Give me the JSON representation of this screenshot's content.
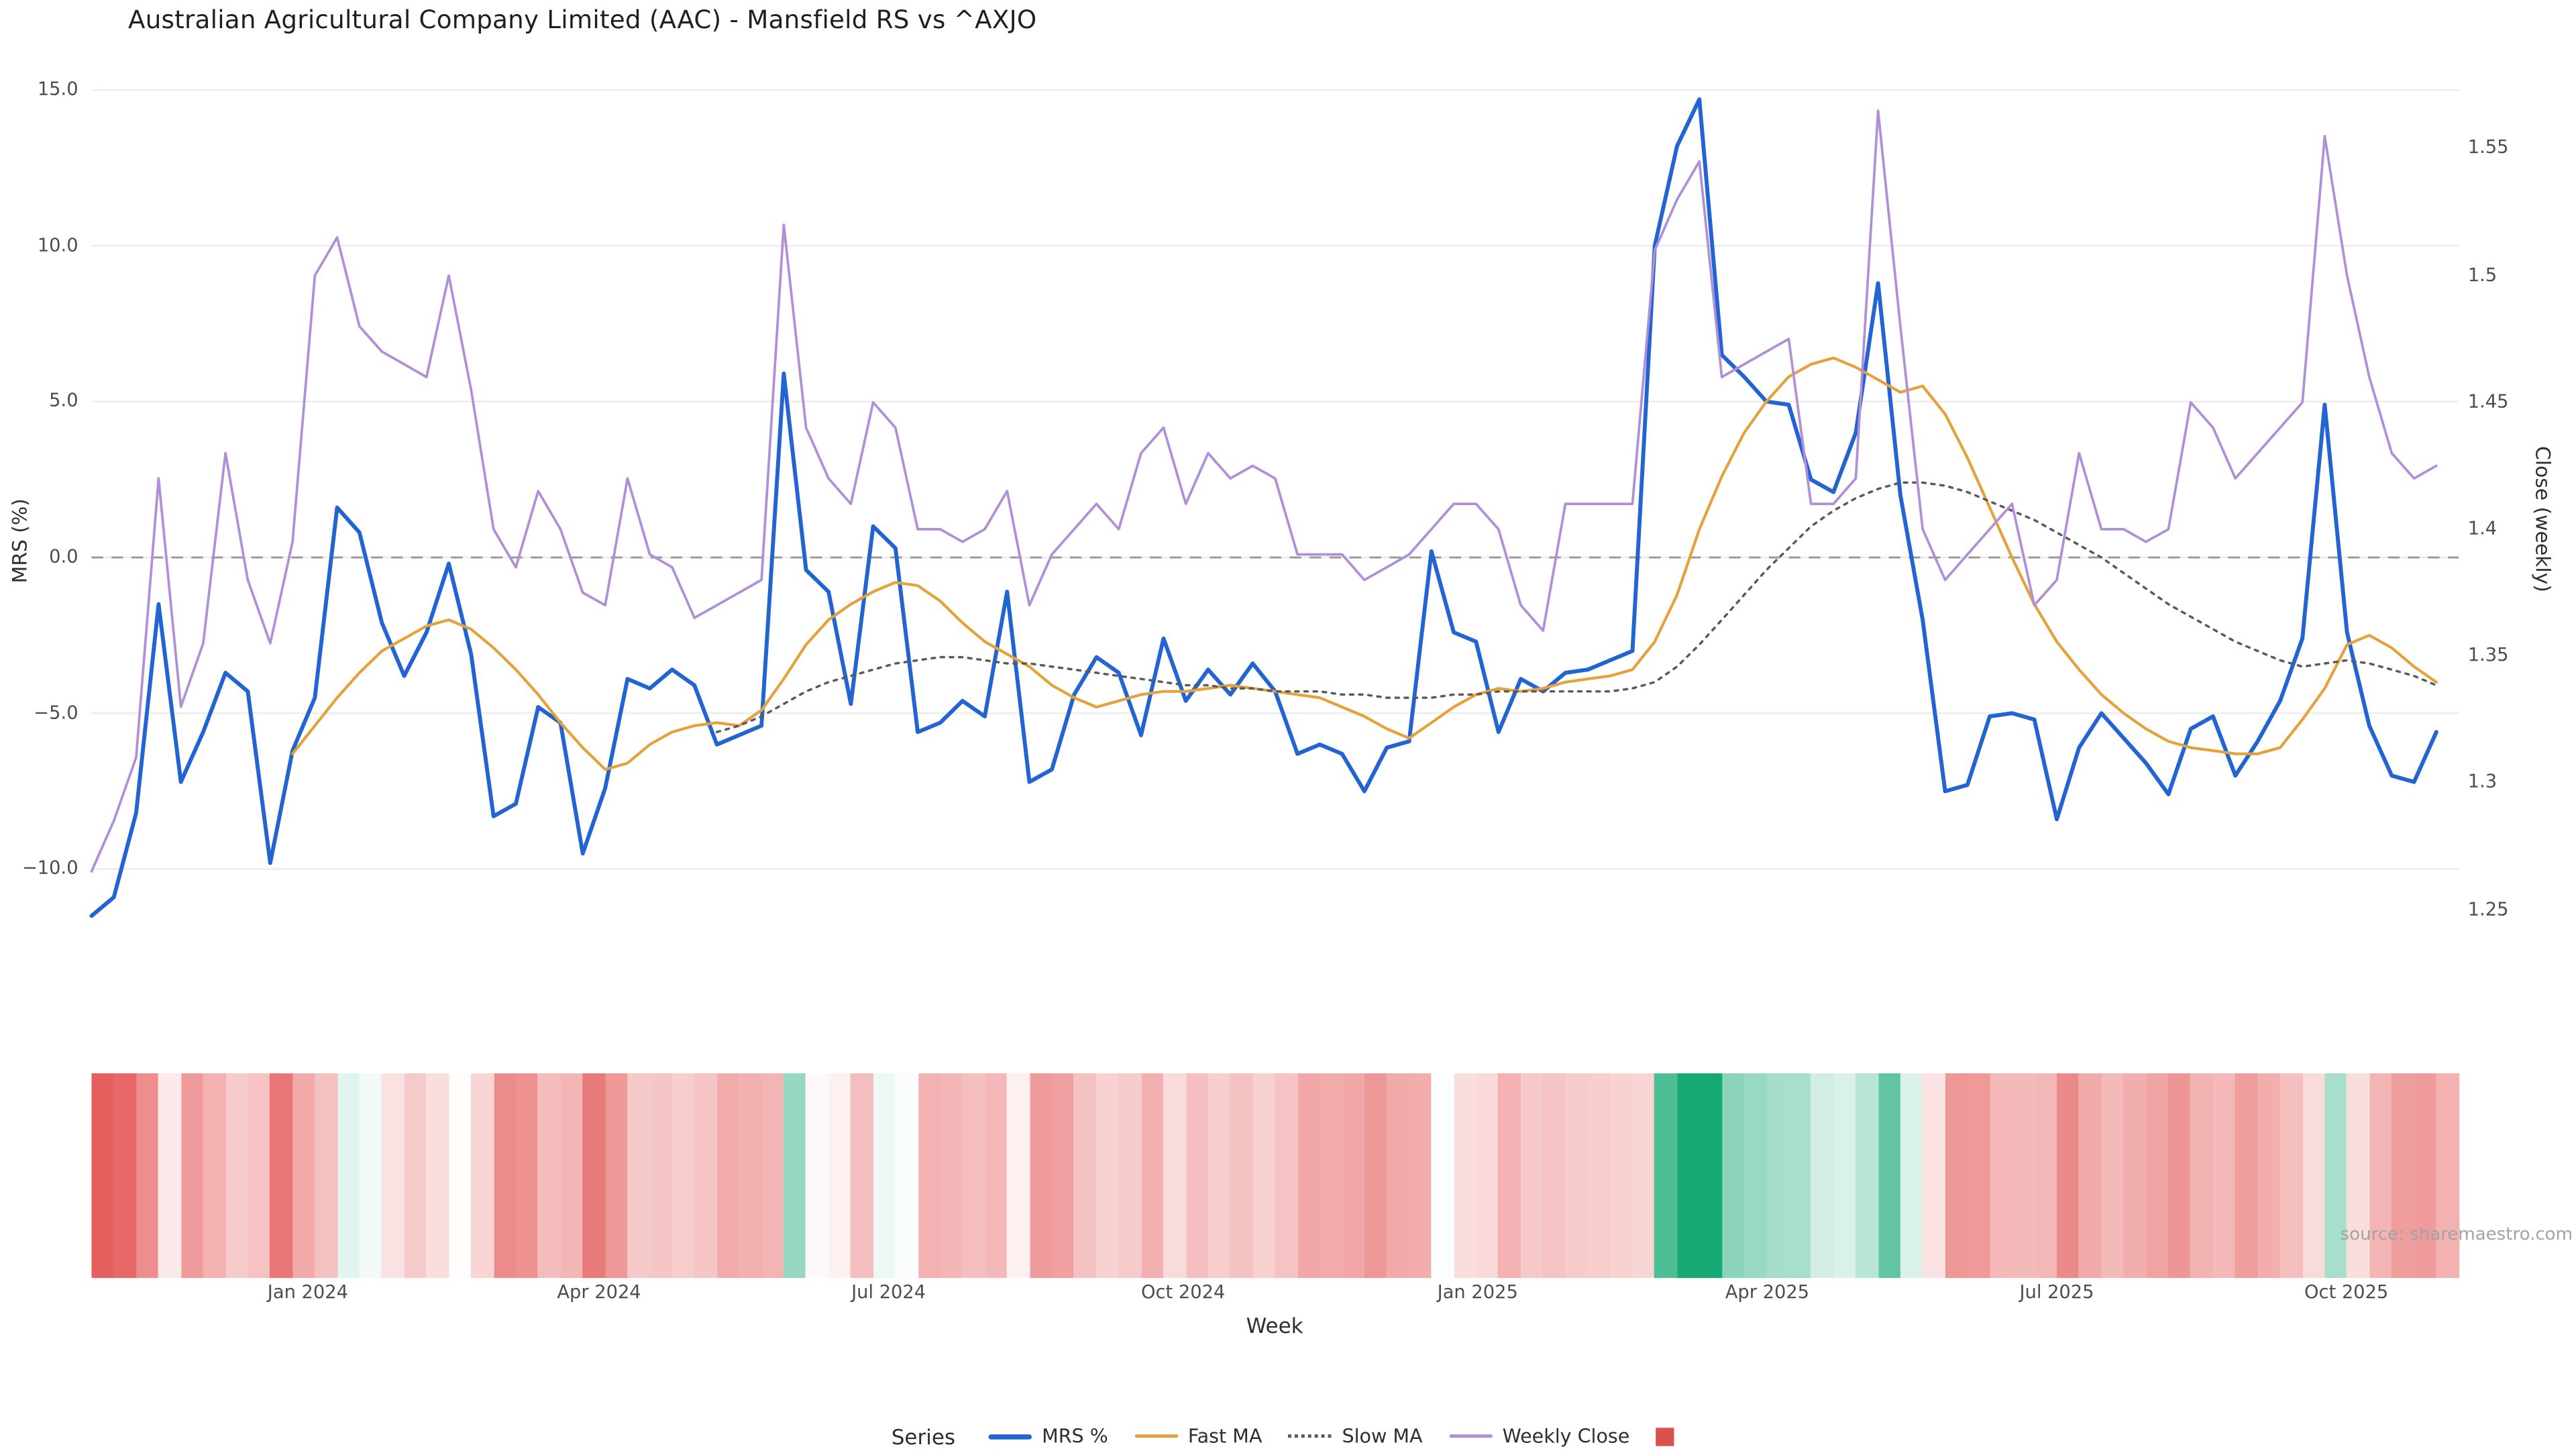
{
  "title": "Australian Agricultural Company Limited (AAC) - Mansfield RS vs ^AXJO",
  "source": "source: sharemaestro.com",
  "axes": {
    "x_label": "Week",
    "left_label": "MRS (%)",
    "right_label": "Close (weekly)"
  },
  "colors": {
    "background": "#ffffff",
    "grid": "#ececec",
    "zero_line": "#9a9a9a",
    "tick_text": "#4d4d4d",
    "title_text": "#1f1f1f"
  },
  "legend": {
    "title": "Series",
    "items": [
      {
        "label": "MRS %",
        "color": "#2264d1",
        "style": "line",
        "thickness": 3
      },
      {
        "label": "Fast MA",
        "color": "#e5a13c",
        "style": "line",
        "thickness": 2
      },
      {
        "label": "Slow MA",
        "color": "#5a5a5a",
        "style": "dotted",
        "thickness": 2
      },
      {
        "label": "Weekly Close",
        "color": "#b18fd8",
        "style": "line",
        "thickness": 2
      },
      {
        "label": "",
        "color": "#d9524e",
        "style": "square",
        "thickness": 11
      }
    ]
  },
  "chart_data": {
    "type": "line",
    "title": "Australian Agricultural Company Limited (AAC) - Mansfield RS vs ^AXJO",
    "xlabel": "Week",
    "x_unit": "weekly observations, late Oct 2023 through early Nov 2025",
    "n_weeks": 106,
    "grid": "horizontal-only",
    "legend_position": "bottom",
    "x_ticks": [
      {
        "label": "Jan 2024",
        "week": 9.7
      },
      {
        "label": "Apr 2024",
        "week": 22.7
      },
      {
        "label": "Jul 2024",
        "week": 35.7
      },
      {
        "label": "Oct 2024",
        "week": 48.9
      },
      {
        "label": "Jan 2025",
        "week": 62.1
      },
      {
        "label": "Apr 2025",
        "week": 75.0
      },
      {
        "label": "Jul 2025",
        "week": 88.0
      },
      {
        "label": "Oct 2025",
        "week": 101.0
      }
    ],
    "left_axis": {
      "label": "MRS (%)",
      "range": [
        -12.5,
        15.8
      ],
      "tick_values": [
        15,
        10,
        5,
        0,
        -5,
        -10
      ],
      "tick_labels": [
        "15.0",
        "10.0",
        "5.0",
        "0.0",
        "−5.0",
        "−10.0"
      ]
    },
    "right_axis": {
      "label": "Close (weekly)",
      "range": [
        1.24,
        1.58
      ],
      "tick_values": [
        1.55,
        1.5,
        1.45,
        1.4,
        1.35,
        1.3,
        1.25
      ],
      "tick_labels": [
        "1.55",
        "1.5",
        "1.45",
        "1.4",
        "1.35",
        "1.3",
        "1.25"
      ]
    },
    "zero_line": 0,
    "series": [
      {
        "name": "MRS %",
        "axis": "left",
        "color": "#2264d1",
        "width": 2.4,
        "dash": null,
        "values": [
          -11.5,
          -10.9,
          -8.2,
          -1.5,
          -7.2,
          -5.6,
          -3.7,
          -4.3,
          -9.8,
          -6.2,
          -4.5,
          1.6,
          0.8,
          -2.1,
          -3.8,
          -2.4,
          -0.2,
          -3.1,
          -8.3,
          -7.9,
          -4.8,
          -5.3,
          -9.5,
          -7.4,
          -3.9,
          -4.2,
          -3.6,
          -4.1,
          -6.0,
          -5.7,
          -5.4,
          5.9,
          -0.4,
          -1.1,
          -4.7,
          1.0,
          0.3,
          -5.6,
          -5.3,
          -4.6,
          -5.1,
          -1.1,
          -7.2,
          -6.8,
          -4.4,
          -3.2,
          -3.7,
          -5.7,
          -2.6,
          -4.6,
          -3.6,
          -4.4,
          -3.4,
          -4.3,
          -6.3,
          -6.0,
          -6.3,
          -7.5,
          -6.1,
          -5.9,
          0.2,
          -2.4,
          -2.7,
          -5.6,
          -3.9,
          -4.3,
          -3.7,
          -3.6,
          -3.3,
          -3.0,
          10.0,
          13.2,
          14.7,
          6.5,
          5.8,
          5.0,
          4.9,
          2.5,
          2.1,
          4.0,
          8.8,
          2.0,
          -2.0,
          -7.5,
          -7.3,
          -5.1,
          -5.0,
          -5.2,
          -8.4,
          -6.1,
          -5.0,
          -5.8,
          -6.6,
          -7.6,
          -5.5,
          -5.1,
          -7.0,
          -5.9,
          -4.6,
          -2.6,
          4.9,
          -2.4,
          -5.4,
          -7.0,
          -7.2,
          -5.6
        ]
      },
      {
        "name": "Fast MA",
        "axis": "left",
        "color": "#e5a13c",
        "width": 1.7,
        "dash": null,
        "values": [
          null,
          null,
          null,
          null,
          null,
          null,
          null,
          null,
          null,
          -6.3,
          -5.4,
          -4.5,
          -3.7,
          -3.0,
          -2.6,
          -2.2,
          -2.0,
          -2.3,
          -2.9,
          -3.6,
          -4.4,
          -5.3,
          -6.1,
          -6.8,
          -6.6,
          -6.0,
          -5.6,
          -5.4,
          -5.3,
          -5.4,
          -4.9,
          -3.9,
          -2.8,
          -2.0,
          -1.5,
          -1.1,
          -0.8,
          -0.9,
          -1.4,
          -2.1,
          -2.7,
          -3.1,
          -3.5,
          -4.1,
          -4.5,
          -4.8,
          -4.6,
          -4.4,
          -4.3,
          -4.3,
          -4.2,
          -4.1,
          -4.2,
          -4.3,
          -4.4,
          -4.5,
          -4.8,
          -5.1,
          -5.5,
          -5.8,
          -5.3,
          -4.8,
          -4.4,
          -4.2,
          -4.3,
          -4.2,
          -4.0,
          -3.9,
          -3.8,
          -3.6,
          -2.7,
          -1.2,
          0.9,
          2.6,
          4.0,
          5.0,
          5.8,
          6.2,
          6.4,
          6.1,
          5.7,
          5.3,
          5.5,
          4.6,
          3.2,
          1.6,
          0.0,
          -1.5,
          -2.7,
          -3.6,
          -4.4,
          -5.0,
          -5.5,
          -5.9,
          -6.1,
          -6.2,
          -6.3,
          -6.3,
          -6.1,
          -5.2,
          -4.2,
          -2.8,
          -2.5,
          -2.9,
          -3.5,
          -4.0
        ]
      },
      {
        "name": "Slow MA",
        "axis": "left",
        "color": "#5a5a5a",
        "width": 1.4,
        "dash": "2 3.5",
        "values": [
          null,
          null,
          null,
          null,
          null,
          null,
          null,
          null,
          null,
          null,
          null,
          null,
          null,
          null,
          null,
          null,
          null,
          null,
          null,
          null,
          null,
          null,
          null,
          null,
          null,
          null,
          null,
          null,
          -5.6,
          -5.4,
          -5.1,
          -4.7,
          -4.3,
          -4.0,
          -3.8,
          -3.6,
          -3.4,
          -3.3,
          -3.2,
          -3.2,
          -3.3,
          -3.4,
          -3.4,
          -3.5,
          -3.6,
          -3.7,
          -3.8,
          -3.9,
          -4.0,
          -4.1,
          -4.1,
          -4.2,
          -4.2,
          -4.3,
          -4.3,
          -4.3,
          -4.4,
          -4.4,
          -4.5,
          -4.5,
          -4.5,
          -4.4,
          -4.4,
          -4.3,
          -4.3,
          -4.3,
          -4.3,
          -4.3,
          -4.3,
          -4.2,
          -4.0,
          -3.5,
          -2.8,
          -2.0,
          -1.2,
          -0.4,
          0.3,
          1.0,
          1.5,
          1.9,
          2.2,
          2.4,
          2.4,
          2.3,
          2.1,
          1.8,
          1.5,
          1.2,
          0.8,
          0.4,
          0.0,
          -0.5,
          -1.0,
          -1.5,
          -1.9,
          -2.3,
          -2.7,
          -3.0,
          -3.3,
          -3.5,
          -3.4,
          -3.3,
          -3.4,
          -3.6,
          -3.8,
          -4.1
        ]
      },
      {
        "name": "Weekly Close",
        "axis": "right",
        "color": "#b18fd8",
        "width": 1.5,
        "dash": null,
        "values": [
          1.265,
          1.285,
          1.31,
          1.42,
          1.33,
          1.355,
          1.43,
          1.38,
          1.355,
          1.395,
          1.5,
          1.515,
          1.48,
          1.47,
          1.465,
          1.46,
          1.5,
          1.455,
          1.4,
          1.385,
          1.415,
          1.4,
          1.375,
          1.37,
          1.42,
          1.39,
          1.385,
          1.365,
          1.37,
          1.375,
          1.38,
          1.52,
          1.44,
          1.42,
          1.41,
          1.45,
          1.44,
          1.4,
          1.4,
          1.395,
          1.4,
          1.415,
          1.37,
          1.39,
          1.4,
          1.41,
          1.4,
          1.43,
          1.44,
          1.41,
          1.43,
          1.42,
          1.425,
          1.42,
          1.39,
          1.39,
          1.39,
          1.38,
          1.385,
          1.39,
          1.4,
          1.41,
          1.41,
          1.4,
          1.37,
          1.36,
          1.41,
          1.41,
          1.41,
          1.41,
          1.51,
          1.53,
          1.545,
          1.46,
          1.465,
          1.47,
          1.475,
          1.41,
          1.41,
          1.42,
          1.565,
          1.48,
          1.4,
          1.38,
          1.39,
          1.4,
          1.41,
          1.37,
          1.38,
          1.43,
          1.4,
          1.4,
          1.395,
          1.4,
          1.45,
          1.44,
          1.42,
          1.43,
          1.44,
          1.45,
          1.555,
          1.5,
          1.46,
          1.43,
          1.42,
          1.425
        ]
      }
    ],
    "heatmap": {
      "derived_from": "MRS %",
      "description": "weekly color strip below plot, red for negative MRS, green for positive MRS",
      "negative_rgb": [
        226,
        74,
        74
      ],
      "positive_rgb": [
        23,
        169,
        116
      ],
      "scale_abs_max": 13
    }
  }
}
